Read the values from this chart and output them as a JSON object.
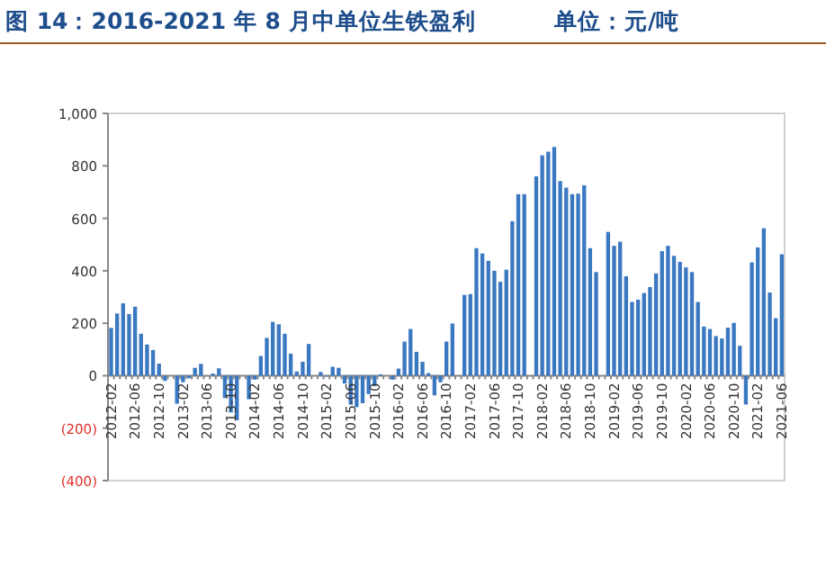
{
  "chart_data": {
    "type": "bar",
    "title": "图 14：2016-2021 年 8 月中单位生铁盈利",
    "ylabel": "单位：元/吨",
    "categories": [
      "2012-02",
      null,
      null,
      null,
      "2012-06",
      null,
      null,
      null,
      "2012-10",
      null,
      null,
      null,
      "2013-02",
      null,
      null,
      null,
      "2013-06",
      null,
      null,
      null,
      "2013-10",
      null,
      null,
      null,
      "2014-02",
      null,
      null,
      null,
      "2014-06",
      null,
      null,
      null,
      "2014-10",
      null,
      null,
      null,
      "2015-02",
      null,
      null,
      null,
      "2015-06",
      null,
      null,
      null,
      "2015-10",
      null,
      null,
      null,
      "2016-02",
      null,
      null,
      null,
      "2016-06",
      null,
      null,
      null,
      "2016-10",
      null,
      null,
      null,
      "2017-02",
      null,
      null,
      null,
      "2017-06",
      null,
      null,
      null,
      "2017-10",
      null,
      null,
      null,
      "2018-02",
      null,
      null,
      null,
      "2018-06",
      null,
      null,
      null,
      "2018-10",
      null,
      null,
      null,
      "2019-02",
      null,
      null,
      null,
      "2019-06",
      null,
      null,
      null,
      "2019-10",
      null,
      null,
      null,
      "2020-02",
      null,
      null,
      null,
      "2020-06",
      null,
      null,
      null,
      "2020-10",
      null,
      null,
      null,
      "2021-02",
      null,
      null,
      null,
      "2021-06"
    ],
    "values": [
      182,
      237,
      276,
      235,
      263,
      160,
      119,
      98,
      46,
      -20,
      null,
      -107,
      -25,
      -10,
      30,
      45,
      null,
      8,
      28,
      -85,
      -140,
      -170,
      null,
      -90,
      -15,
      75,
      144,
      205,
      196,
      160,
      84,
      16,
      53,
      121,
      null,
      14,
      -3,
      34,
      30,
      -30,
      -110,
      -120,
      -105,
      -70,
      -40,
      5,
      null,
      -15,
      27,
      130,
      178,
      91,
      53,
      10,
      -75,
      -25,
      130,
      199,
      null,
      308,
      311,
      486,
      466,
      438,
      400,
      358,
      404,
      589,
      692,
      692,
      null,
      760,
      840,
      854,
      872,
      742,
      717,
      692,
      694,
      726,
      486,
      395,
      null,
      548,
      495,
      511,
      379,
      281,
      290,
      315,
      338,
      390,
      475,
      495,
      457,
      434,
      413,
      395,
      281,
      187,
      178,
      151,
      142,
      183,
      201,
      114,
      -110,
      432,
      489,
      562,
      317,
      219,
      463
    ],
    "color": "#3a78c2",
    "ylim": [
      -400,
      1000
    ],
    "yticks": [
      {
        "value": -400,
        "label": "(400)"
      },
      {
        "value": -200,
        "label": "(200)"
      },
      0,
      200,
      400,
      600,
      800,
      {
        "value": 1000,
        "label": "1,000"
      }
    ]
  }
}
